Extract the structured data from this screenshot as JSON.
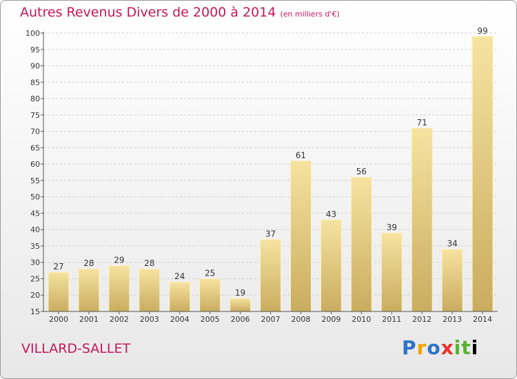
{
  "title": "Autres Revenus Divers de 2000 à 2014",
  "unit": "(en milliers d'€)",
  "commune": "VILLARD-SALLET",
  "logo": {
    "letters": [
      "P",
      "r",
      "o",
      "x",
      "i",
      "t",
      "i"
    ]
  },
  "colors": {
    "title": "#c2185b",
    "bar_light": "#f6e3a0",
    "bar_dark": "#c9ac5f",
    "grid": "#cccccc"
  },
  "chart_data": {
    "type": "bar",
    "title": "Autres Revenus Divers de 2000 à 2014",
    "xlabel": "",
    "ylabel": "",
    "ylim": [
      15,
      100
    ],
    "yticks": [
      15,
      20,
      25,
      30,
      35,
      40,
      45,
      50,
      55,
      60,
      65,
      70,
      75,
      80,
      85,
      90,
      95,
      100
    ],
    "categories": [
      "2000",
      "2001",
      "2002",
      "2003",
      "2004",
      "2005",
      "2006",
      "2007",
      "2008",
      "2009",
      "2010",
      "2011",
      "2012",
      "2013",
      "2014"
    ],
    "values": [
      27,
      28,
      29,
      28,
      24,
      25,
      19,
      37,
      61,
      43,
      56,
      39,
      71,
      34,
      99
    ],
    "grid": true,
    "legend": "none"
  }
}
